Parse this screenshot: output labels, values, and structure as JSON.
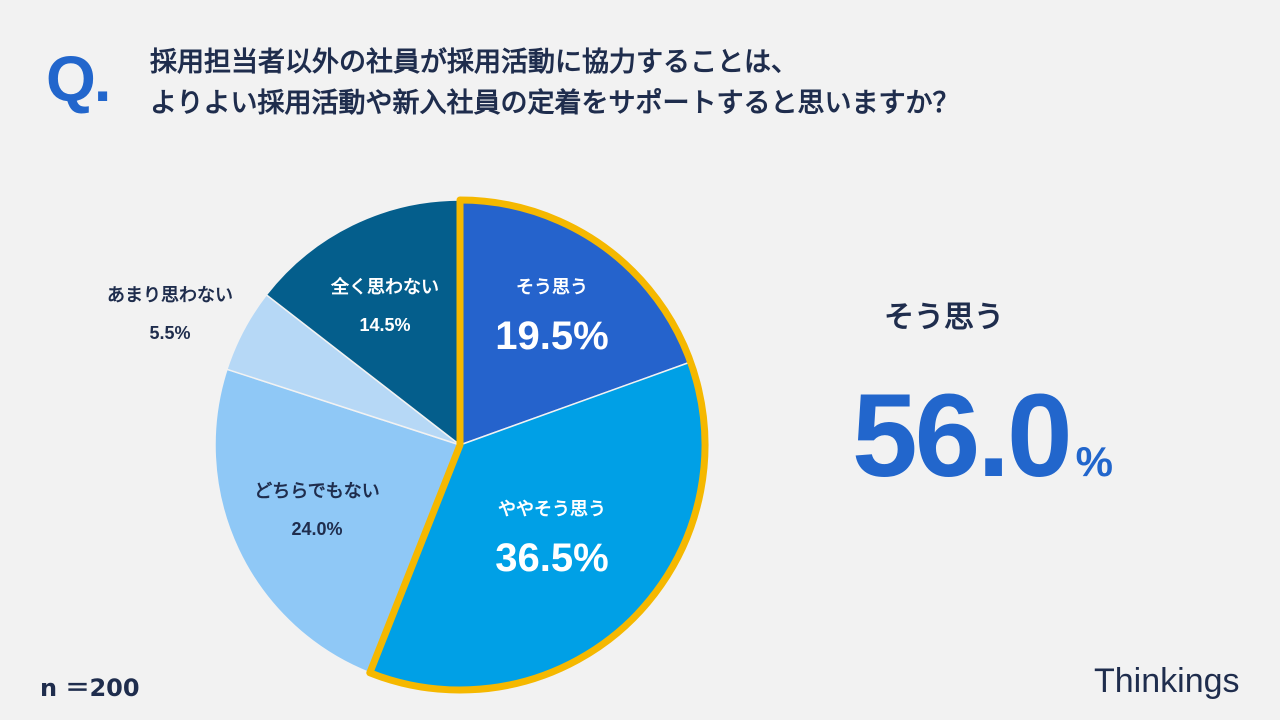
{
  "header": {
    "q_mark": "Q.",
    "question_line1": "採用担当者以外の社員が採用活動に協力することは、",
    "question_line2": "よりよい採用活動や新入社員の定着をサポートすると思いますか？"
  },
  "chart_data": {
    "type": "pie",
    "start_angle_deg": 0,
    "direction": "clockwise",
    "unit": "%",
    "slices": [
      {
        "label": "そう思う",
        "value": 19.5,
        "value_text": "19.5%",
        "color": "#2563cc",
        "text_color": "#ffffff",
        "label_position": "inside",
        "highlighted": true
      },
      {
        "label": "ややそう思う",
        "value": 36.5,
        "value_text": "36.5%",
        "color": "#00a0e6",
        "text_color": "#ffffff",
        "label_position": "inside",
        "highlighted": true
      },
      {
        "label": "どちらでもない",
        "value": 24.0,
        "value_text": "24.0%",
        "color": "#8fc8f6",
        "text_color": "#1f2d4d",
        "label_position": "inside",
        "highlighted": false
      },
      {
        "label": "あまり思わない",
        "value": 5.5,
        "value_text": "5.5%",
        "color": "#b6d8f6",
        "text_color": "#1f2d4d",
        "label_position": "outside",
        "highlighted": false
      },
      {
        "label": "全く思わない",
        "value": 14.5,
        "value_text": "14.5%",
        "color": "#045e8c",
        "text_color": "#ffffff",
        "label_position": "inside",
        "highlighted": false
      }
    ],
    "highlight_color": "#f5b800"
  },
  "summary": {
    "label": "そう思う",
    "value": "56.0",
    "unit": "%"
  },
  "footer": {
    "sample_size": "n ＝200",
    "brand": "Thinkings"
  }
}
